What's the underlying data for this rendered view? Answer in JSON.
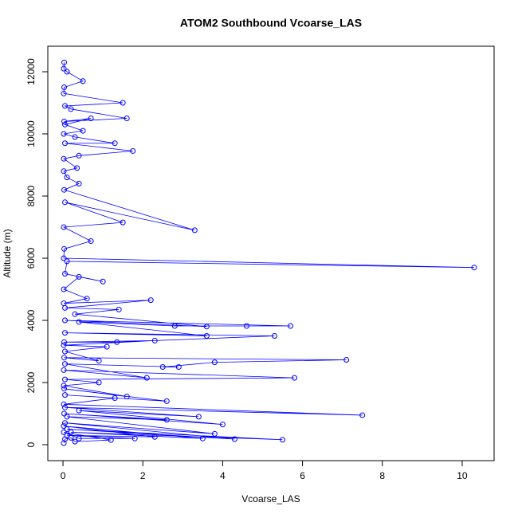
{
  "chart_data": {
    "type": "line",
    "title": "ATOM2 Southbound Vcoarse_LAS",
    "x_label": "Vcoarse_LAS",
    "y_label": "Altitude (m)",
    "color": "#0000ff",
    "x": [
      0.03,
      0.02,
      0.1,
      0.5,
      0.03,
      0.02,
      1.5,
      0.05,
      0.2,
      1.6,
      0.03,
      0.7,
      0.05,
      0.5,
      0.02,
      0.3,
      1.3,
      0.05,
      1.75,
      0.4,
      0.02,
      0.35,
      0.02,
      0.1,
      0.4,
      0.03,
      3.3,
      0.05,
      1.5,
      0.02,
      0.7,
      0.03,
      0.02,
      10.3,
      0.1,
      0.05,
      1.0,
      0.4,
      0.02,
      0.6,
      0.02,
      2.2,
      0.05,
      1.4,
      0.3,
      3.6,
      0.05,
      5.7,
      4.6,
      2.8,
      0.4,
      3.6,
      0.05,
      5.3,
      1.35,
      0.03,
      2.3,
      0.02,
      1.1,
      0.05,
      0.9,
      0.03,
      7.1,
      3.8,
      2.5,
      2.9,
      0.05,
      2.1,
      0.02,
      5.8,
      0.05,
      0.9,
      0.02,
      1.6,
      0.03,
      2.6,
      0.05,
      1.3,
      0.02,
      7.5,
      0.05,
      3.4,
      0.4,
      4.0,
      0.03,
      2.6,
      0.1,
      3.8,
      0.05,
      4.3,
      0.1,
      5.5,
      0.2,
      3.5,
      0.02,
      2.3,
      0.1,
      1.8,
      0.4,
      0.02,
      1.2,
      0.3,
      0.2,
      0.05,
      0.02
    ],
    "values": [
      12300,
      12100,
      12000,
      11700,
      11500,
      11300,
      11000,
      10900,
      10800,
      10500,
      10400,
      10500,
      10300,
      10100,
      10000,
      9900,
      9700,
      9700,
      9450,
      9300,
      9200,
      8900,
      8800,
      8600,
      8400,
      8200,
      6900,
      7800,
      7150,
      7000,
      6550,
      6300,
      6000,
      5700,
      5900,
      5500,
      5250,
      5400,
      5000,
      4700,
      4550,
      4650,
      4400,
      4350,
      4200,
      3800,
      4000,
      3820,
      3820,
      3820,
      3950,
      3500,
      3600,
      3500,
      3300,
      3300,
      3350,
      3200,
      3150,
      3000,
      2700,
      2800,
      2730,
      2650,
      2500,
      2500,
      2600,
      2150,
      2400,
      2150,
      2100,
      2000,
      1900,
      1550,
      1800,
      1400,
      1600,
      1500,
      1300,
      950,
      1200,
      900,
      1100,
      650,
      1000,
      800,
      900,
      350,
      700,
      180,
      500,
      160,
      400,
      200,
      600,
      250,
      300,
      200,
      200,
      400,
      150,
      100,
      220,
      180,
      50
    ],
    "xlim": [
      -0.38,
      10.8
    ],
    "ylim": [
      -513,
      12821
    ],
    "xticks": [
      0,
      2,
      4,
      6,
      8,
      10
    ],
    "yticks": [
      0,
      2000,
      4000,
      6000,
      8000,
      10000,
      12000
    ]
  }
}
